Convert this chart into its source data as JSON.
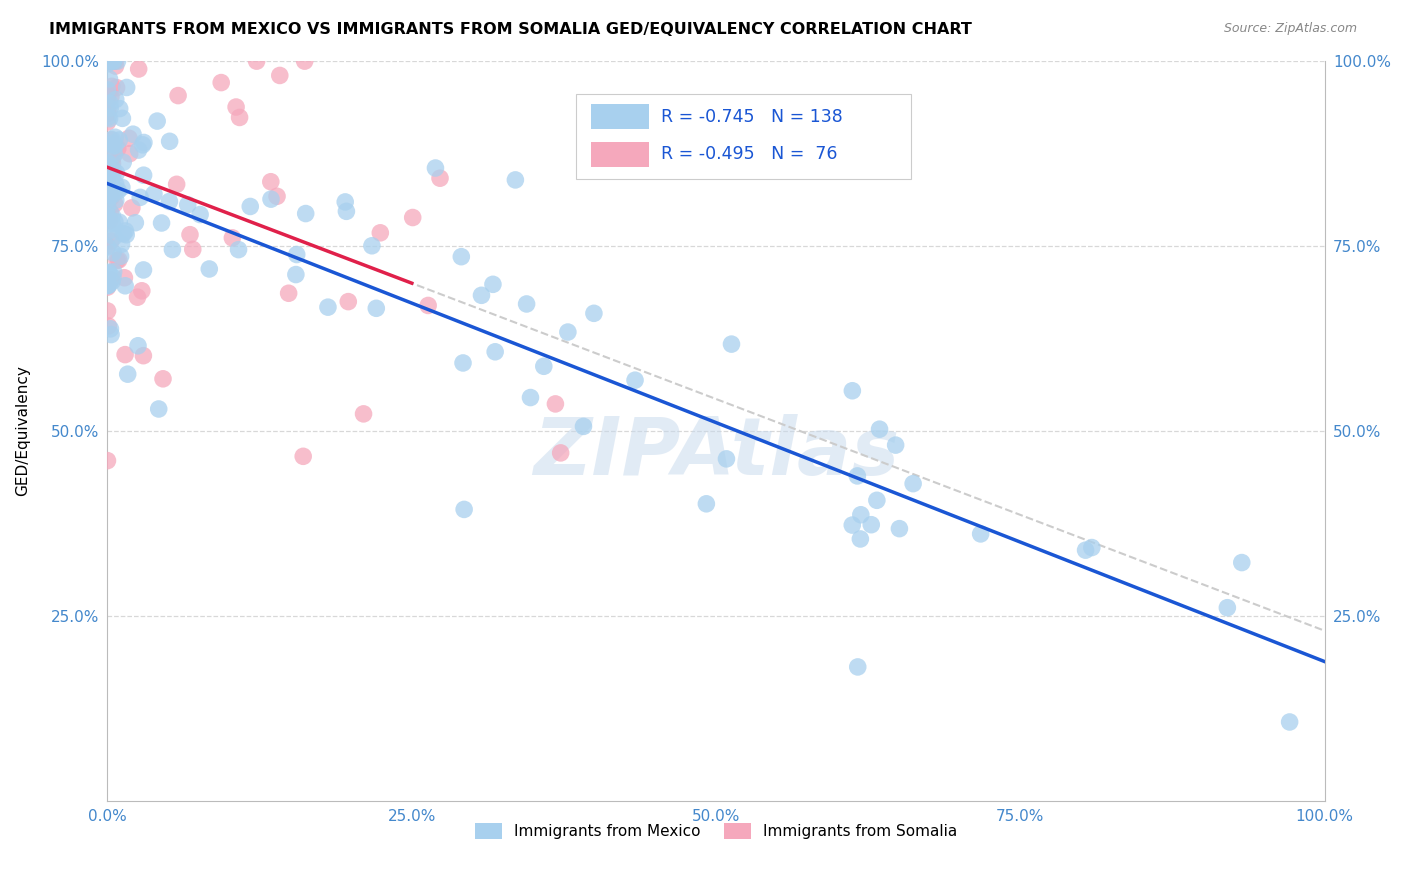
{
  "title": "IMMIGRANTS FROM MEXICO VS IMMIGRANTS FROM SOMALIA GED/EQUIVALENCY CORRELATION CHART",
  "source": "Source: ZipAtlas.com",
  "ylabel": "GED/Equivalency",
  "r_mexico": -0.745,
  "n_mexico": 138,
  "r_somalia": -0.495,
  "n_somalia": 76,
  "color_mexico": "#a8d0ee",
  "color_somalia": "#f5a8bc",
  "line_color_mexico": "#1a56d4",
  "line_color_somalia": "#e0204a",
  "line_color_dashed": "#cccccc",
  "background_color": "#ffffff",
  "grid_color": "#d8d8d8",
  "legend_text_color": "#1a56d4",
  "axis_tick_color": "#4488cc",
  "title_fontsize": 11.5,
  "source_fontsize": 9,
  "watermark": "ZIPAtlas",
  "xlim": [
    0,
    1
  ],
  "ylim": [
    0,
    1
  ],
  "xticks": [
    0.0,
    0.25,
    0.5,
    0.75,
    1.0
  ],
  "yticks": [
    0.0,
    0.25,
    0.5,
    0.75,
    1.0
  ],
  "xticklabels": [
    "0.0%",
    "25.0%",
    "50.0%",
    "75.0%",
    "100.0%"
  ],
  "yticklabels_left": [
    "",
    "25.0%",
    "50.0%",
    "75.0%",
    "100.0%"
  ],
  "yticklabels_right": [
    "",
    "25.0%",
    "50.0%",
    "75.0%",
    "100.0%"
  ]
}
